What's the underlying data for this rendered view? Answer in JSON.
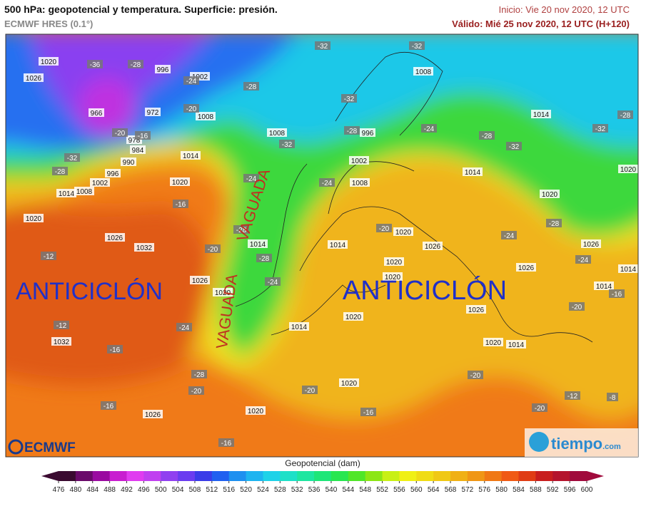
{
  "header": {
    "title": "500 hPa: geopotencial y temperatura. Superficie: presión.",
    "model": "ECMWF HRES (0.1°)",
    "init": "Inicio: Vie 20 nov 2020, 12 UTC",
    "valid": "Válido: Mié 25 nov 2020, 12 UTC (H+120)"
  },
  "map": {
    "annotations": [
      "ANTICICLÓN",
      "ANTICICLÓN",
      "VAGUADA",
      "VAGUADA"
    ],
    "pressure_labels": [
      "1020",
      "1026",
      "996",
      "1002",
      "966",
      "972",
      "1008",
      "978",
      "984",
      "990",
      "996",
      "1002",
      "1008",
      "1014",
      "1014",
      "1020",
      "1020",
      "1026",
      "1032",
      "1026",
      "1020",
      "1032",
      "1026",
      "1020",
      "1020",
      "1014",
      "1020",
      "1014",
      "1014",
      "1008",
      "1002",
      "996",
      "1008",
      "1008",
      "1014",
      "1014",
      "1020",
      "1020",
      "1020",
      "1026",
      "1020",
      "1020",
      "1026",
      "1026",
      "1014",
      "1014",
      "1026",
      "1020",
      "1014"
    ],
    "temperature_labels": [
      "-36",
      "-28",
      "-24",
      "-20",
      "-16",
      "-20",
      "-32",
      "-28",
      "-16",
      "-12",
      "-20",
      "-24",
      "-28",
      "-28",
      "-28",
      "-24",
      "-24",
      "-12",
      "-16",
      "-28",
      "-20",
      "-16",
      "-20",
      "-16",
      "-16",
      "-32",
      "-32",
      "-32",
      "-28",
      "-24",
      "-32",
      "-24",
      "-28",
      "-32",
      "-28",
      "-32",
      "-28",
      "-24",
      "-20",
      "-24",
      "-16",
      "-20",
      "-20",
      "-12",
      "-20",
      "-8"
    ]
  },
  "logos": {
    "left": "ECMWF",
    "right": "tiempo",
    "right_suffix": ".com"
  },
  "colorbar": {
    "label": "Geopotencial (dam)",
    "ticks": [
      476,
      480,
      484,
      488,
      492,
      496,
      500,
      504,
      508,
      512,
      516,
      520,
      524,
      528,
      532,
      536,
      540,
      544,
      548,
      552,
      556,
      560,
      564,
      568,
      572,
      576,
      580,
      584,
      588,
      592,
      596,
      600
    ],
    "colors": [
      "#3a0a30",
      "#6a0a6a",
      "#9a0aa0",
      "#c81ed0",
      "#e03cf0",
      "#c040f0",
      "#9040f0",
      "#6a3cf0",
      "#3a3ce8",
      "#2060f0",
      "#1e90f0",
      "#1eb4f0",
      "#1ed2e8",
      "#1ee0c8",
      "#1ee6a0",
      "#1ee678",
      "#28e650",
      "#50e628",
      "#8ce614",
      "#c8f014",
      "#f0f014",
      "#f0dc14",
      "#f0c814",
      "#f0b014",
      "#f09614",
      "#f07814",
      "#f05a14",
      "#e03c14",
      "#c81e1e",
      "#b4142d",
      "#a00a3c"
    ]
  }
}
